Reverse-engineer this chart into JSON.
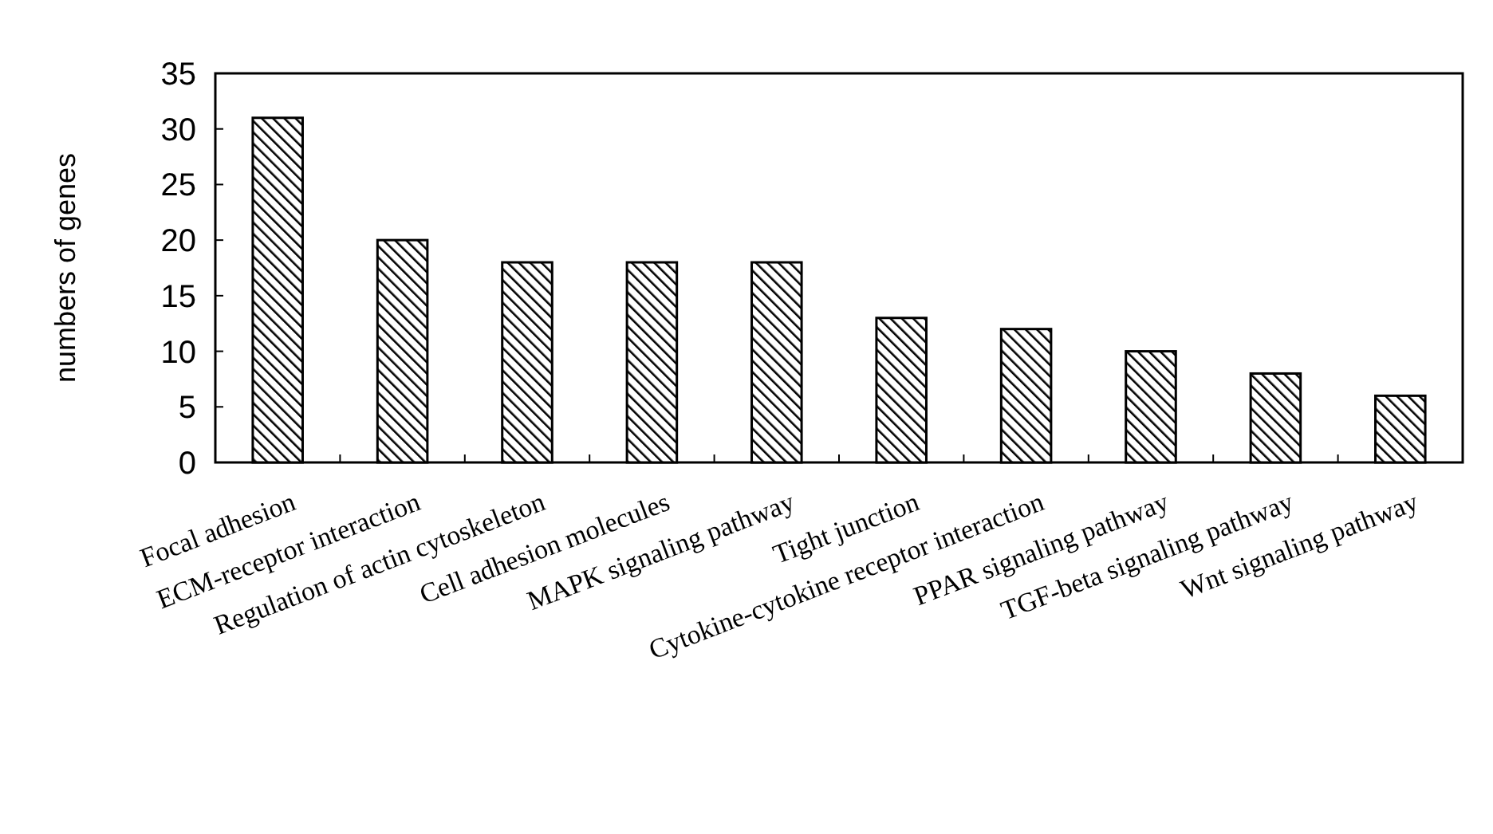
{
  "chart_data": {
    "type": "bar",
    "ylabel": "numbers of genes",
    "categories": [
      "Focal adhesion",
      "ECM-receptor interaction",
      "Regulation of actin cytoskeleton",
      "Cell adhesion molecules",
      "MAPK signaling pathway",
      "Tight junction",
      "Cytokine-cytokine receptor interaction",
      "PPAR signaling pathway",
      "TGF-beta signaling pathway",
      "Wnt signaling pathway"
    ],
    "values": [
      31,
      20,
      18,
      18,
      18,
      13,
      12,
      10,
      8,
      6
    ],
    "color": "#000000",
    "ylim": [
      0,
      35
    ],
    "yticks": [
      0,
      5,
      10,
      15,
      20,
      25,
      30,
      35
    ],
    "grid": false
  }
}
